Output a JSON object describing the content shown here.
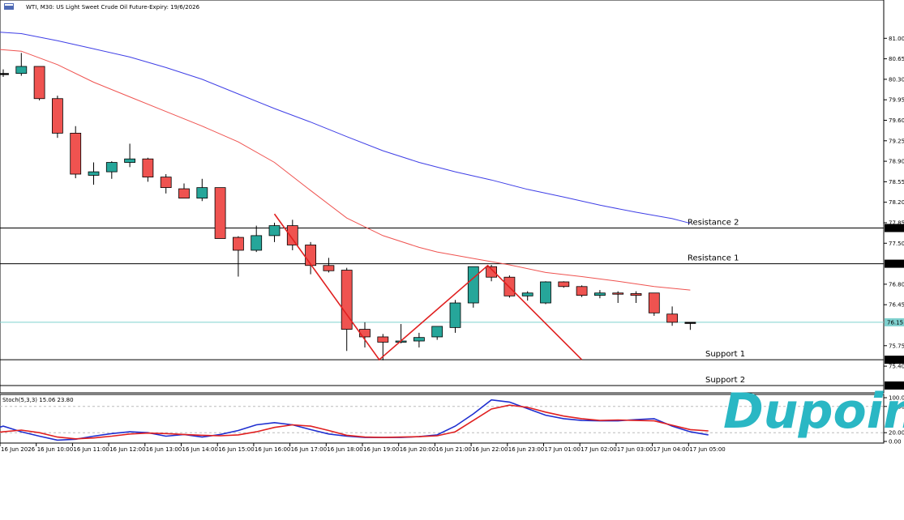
{
  "window": {
    "title": "WTI, M30:  US Light Sweet Crude Oil Future-Expiry: 19/6/2026",
    "logo_text": "Dupoin",
    "colors": {
      "bull": "#26a69a",
      "bear": "#ef5350",
      "ma_fast": "#ef5350",
      "ma_slow": "#3f3fe6",
      "zigzag": "#e02020",
      "price_line": "#7fd1cf",
      "logo": "#2ab7c4"
    }
  },
  "chart_data": [
    {
      "type": "candlestick",
      "title": "WTI, M30:  US Light Sweet Crude Oil Future-Expiry: 19/6/2026",
      "ylim": [
        75.0,
        81.35
      ],
      "y_ticks": [
        "81.00",
        "80.65",
        "80.30",
        "79.95",
        "79.60",
        "79.25",
        "78.90",
        "78.55",
        "78.20",
        "77.85",
        "77.50",
        "76.80",
        "76.45",
        "75.75",
        "75.40"
      ],
      "x_ticks": [
        "16 Jun 2026",
        "16 Jun 10:00",
        "16 Jun 11:00",
        "16 Jun 12:00",
        "16 Jun 13:00",
        "16 Jun 14:00",
        "16 Jun 15:00",
        "16 Jun 16:00",
        "16 Jun 17:00",
        "16 Jun 18:00",
        "16 Jun 19:00",
        "16 Jun 20:00",
        "16 Jun 21:00",
        "16 Jun 22:00",
        "16 Jun 23:00",
        "17 Jun 01:00",
        "17 Jun 02:00",
        "17 Jun 03:00",
        "17 Jun 04:00",
        "17 Jun 05:00"
      ],
      "candles": [
        {
          "o": 80.4,
          "h": 80.47,
          "l": 80.34,
          "c": 80.4
        },
        {
          "o": 80.4,
          "h": 80.75,
          "l": 80.36,
          "c": 80.52
        },
        {
          "o": 80.52,
          "h": 80.52,
          "l": 79.94,
          "c": 79.97
        },
        {
          "o": 79.97,
          "h": 80.02,
          "l": 79.3,
          "c": 79.38
        },
        {
          "o": 79.38,
          "h": 79.5,
          "l": 78.61,
          "c": 78.68
        },
        {
          "o": 78.66,
          "h": 78.88,
          "l": 78.5,
          "c": 78.72
        },
        {
          "o": 78.72,
          "h": 78.9,
          "l": 78.6,
          "c": 78.88
        },
        {
          "o": 78.88,
          "h": 79.2,
          "l": 78.8,
          "c": 78.94
        },
        {
          "o": 78.94,
          "h": 78.96,
          "l": 78.55,
          "c": 78.63
        },
        {
          "o": 78.63,
          "h": 78.68,
          "l": 78.35,
          "c": 78.45
        },
        {
          "o": 78.43,
          "h": 78.52,
          "l": 78.3,
          "c": 78.27
        },
        {
          "o": 78.27,
          "h": 78.6,
          "l": 78.22,
          "c": 78.45
        },
        {
          "o": 78.45,
          "h": 78.45,
          "l": 77.6,
          "c": 77.58
        },
        {
          "o": 77.6,
          "h": 77.62,
          "l": 76.93,
          "c": 77.38
        },
        {
          "o": 77.38,
          "h": 77.8,
          "l": 77.35,
          "c": 77.63
        },
        {
          "o": 77.63,
          "h": 77.85,
          "l": 77.52,
          "c": 77.8
        },
        {
          "o": 77.8,
          "h": 77.9,
          "l": 77.38,
          "c": 77.47
        },
        {
          "o": 77.47,
          "h": 77.52,
          "l": 76.97,
          "c": 77.12
        },
        {
          "o": 77.12,
          "h": 77.25,
          "l": 77.0,
          "c": 77.03
        },
        {
          "o": 77.04,
          "h": 77.08,
          "l": 75.66,
          "c": 76.03
        },
        {
          "o": 76.03,
          "h": 76.15,
          "l": 75.72,
          "c": 75.9
        },
        {
          "o": 75.9,
          "h": 75.95,
          "l": 75.5,
          "c": 75.81
        },
        {
          "o": 75.81,
          "h": 76.12,
          "l": 75.79,
          "c": 75.83
        },
        {
          "o": 75.83,
          "h": 75.97,
          "l": 75.72,
          "c": 75.89
        },
        {
          "o": 75.9,
          "h": 76.08,
          "l": 75.85,
          "c": 76.08
        },
        {
          "o": 76.06,
          "h": 76.53,
          "l": 75.97,
          "c": 76.48
        },
        {
          "o": 76.48,
          "h": 77.1,
          "l": 76.4,
          "c": 77.1
        },
        {
          "o": 77.1,
          "h": 77.13,
          "l": 76.85,
          "c": 76.92
        },
        {
          "o": 76.92,
          "h": 76.95,
          "l": 76.57,
          "c": 76.6
        },
        {
          "o": 76.6,
          "h": 76.68,
          "l": 76.52,
          "c": 76.65
        },
        {
          "o": 76.48,
          "h": 76.85,
          "l": 76.46,
          "c": 76.84
        },
        {
          "o": 76.84,
          "h": 76.85,
          "l": 76.74,
          "c": 76.76
        },
        {
          "o": 76.76,
          "h": 76.78,
          "l": 76.58,
          "c": 76.61
        },
        {
          "o": 76.61,
          "h": 76.7,
          "l": 76.56,
          "c": 76.65
        },
        {
          "o": 76.65,
          "h": 76.68,
          "l": 76.48,
          "c": 76.64
        },
        {
          "o": 76.64,
          "h": 76.68,
          "l": 76.48,
          "c": 76.61
        },
        {
          "o": 76.65,
          "h": 76.65,
          "l": 76.26,
          "c": 76.31
        },
        {
          "o": 76.29,
          "h": 76.42,
          "l": 76.09,
          "c": 76.15
        },
        {
          "o": 76.15,
          "h": 76.15,
          "l": 76.02,
          "c": 76.15
        }
      ],
      "ma_fast": [
        [
          -1,
          80.83
        ],
        [
          1,
          80.78
        ],
        [
          3,
          80.55
        ],
        [
          5,
          80.25
        ],
        [
          7,
          80.0
        ],
        [
          9,
          79.75
        ],
        [
          11,
          79.5
        ],
        [
          13,
          79.23
        ],
        [
          15,
          78.88
        ],
        [
          17,
          78.4
        ],
        [
          19,
          77.93
        ],
        [
          21,
          77.63
        ],
        [
          23,
          77.43
        ],
        [
          24,
          77.35
        ],
        [
          26,
          77.24
        ],
        [
          28,
          77.13
        ],
        [
          30,
          77.0
        ],
        [
          32,
          76.93
        ],
        [
          34,
          76.85
        ],
        [
          36,
          76.76
        ],
        [
          38,
          76.7
        ]
      ],
      "ma_slow": [
        [
          -1,
          81.12
        ],
        [
          1,
          81.08
        ],
        [
          3,
          80.96
        ],
        [
          5,
          80.82
        ],
        [
          7,
          80.68
        ],
        [
          9,
          80.5
        ],
        [
          11,
          80.3
        ],
        [
          13,
          80.05
        ],
        [
          15,
          79.8
        ],
        [
          17,
          79.57
        ],
        [
          19,
          79.32
        ],
        [
          21,
          79.08
        ],
        [
          23,
          78.88
        ],
        [
          25,
          78.72
        ],
        [
          27,
          78.58
        ],
        [
          29,
          78.42
        ],
        [
          31,
          78.29
        ],
        [
          33,
          78.15
        ],
        [
          35,
          78.03
        ],
        [
          37,
          77.92
        ],
        [
          38,
          77.84
        ]
      ],
      "zigzag": [
        [
          15.0,
          78.0
        ],
        [
          20.8,
          75.51
        ],
        [
          26.8,
          77.12
        ],
        [
          32.0,
          75.51
        ]
      ],
      "current_price": 76.15,
      "price_tags": [
        "77.76",
        "77.15",
        "76.15",
        "75.51",
        "75.07"
      ],
      "levels": [
        {
          "label": "Resistance 2",
          "value": 77.76
        },
        {
          "label": "Resistance 1",
          "value": 77.15
        },
        {
          "label": "Support 1",
          "value": 75.51
        },
        {
          "label": "Support 2",
          "value": 75.07
        }
      ]
    },
    {
      "type": "line",
      "title": "Stoch(5,3,3) 15.06 23.80",
      "ylim": [
        0,
        100
      ],
      "y_ticks": [
        "100.00",
        "80.00",
        "20.00",
        "0.00"
      ],
      "levels": [
        80,
        20
      ],
      "series": [
        {
          "name": "main",
          "color": "#1f2fd0",
          "points": [
            [
              -1,
              22
            ],
            [
              0,
              35
            ],
            [
              1,
              22
            ],
            [
              2,
              12
            ],
            [
              3,
              3
            ],
            [
              4,
              5
            ],
            [
              5,
              12
            ],
            [
              6,
              18
            ],
            [
              7,
              22
            ],
            [
              8,
              20
            ],
            [
              9,
              12
            ],
            [
              10,
              16
            ],
            [
              11,
              10
            ],
            [
              12,
              16
            ],
            [
              13,
              25
            ],
            [
              14,
              38
            ],
            [
              15,
              43
            ],
            [
              16,
              38
            ],
            [
              17,
              27
            ],
            [
              18,
              17
            ],
            [
              19,
              12
            ],
            [
              20,
              9
            ],
            [
              21,
              9
            ],
            [
              22,
              9
            ],
            [
              23,
              11
            ],
            [
              24,
              15
            ],
            [
              25,
              35
            ],
            [
              26,
              63
            ],
            [
              27,
              95
            ],
            [
              28,
              90
            ],
            [
              29,
              75
            ],
            [
              30,
              60
            ],
            [
              31,
              52
            ],
            [
              32,
              48
            ],
            [
              33,
              47
            ],
            [
              34,
              47
            ],
            [
              35,
              50
            ],
            [
              36,
              52
            ],
            [
              37,
              35
            ],
            [
              38,
              22
            ],
            [
              39,
              15
            ]
          ]
        },
        {
          "name": "signal",
          "color": "#e02020",
          "points": [
            [
              -1,
              18
            ],
            [
              0,
              22
            ],
            [
              1,
              26
            ],
            [
              2,
              20
            ],
            [
              3,
              10
            ],
            [
              4,
              6
            ],
            [
              5,
              8
            ],
            [
              6,
              12
            ],
            [
              7,
              17
            ],
            [
              8,
              19
            ],
            [
              9,
              18
            ],
            [
              10,
              16
            ],
            [
              11,
              14
            ],
            [
              12,
              13
            ],
            [
              13,
              15
            ],
            [
              14,
              22
            ],
            [
              15,
              32
            ],
            [
              16,
              38
            ],
            [
              17,
              35
            ],
            [
              18,
              25
            ],
            [
              19,
              14
            ],
            [
              20,
              10
            ],
            [
              21,
              9
            ],
            [
              22,
              10
            ],
            [
              23,
              11
            ],
            [
              24,
              13
            ],
            [
              25,
              22
            ],
            [
              26,
              48
            ],
            [
              27,
              74
            ],
            [
              28,
              83
            ],
            [
              29,
              78
            ],
            [
              30,
              67
            ],
            [
              31,
              58
            ],
            [
              32,
              52
            ],
            [
              33,
              48
            ],
            [
              34,
              49
            ],
            [
              35,
              48
            ],
            [
              36,
              47
            ],
            [
              37,
              37
            ],
            [
              38,
              27
            ],
            [
              39,
              24
            ]
          ]
        }
      ]
    }
  ]
}
